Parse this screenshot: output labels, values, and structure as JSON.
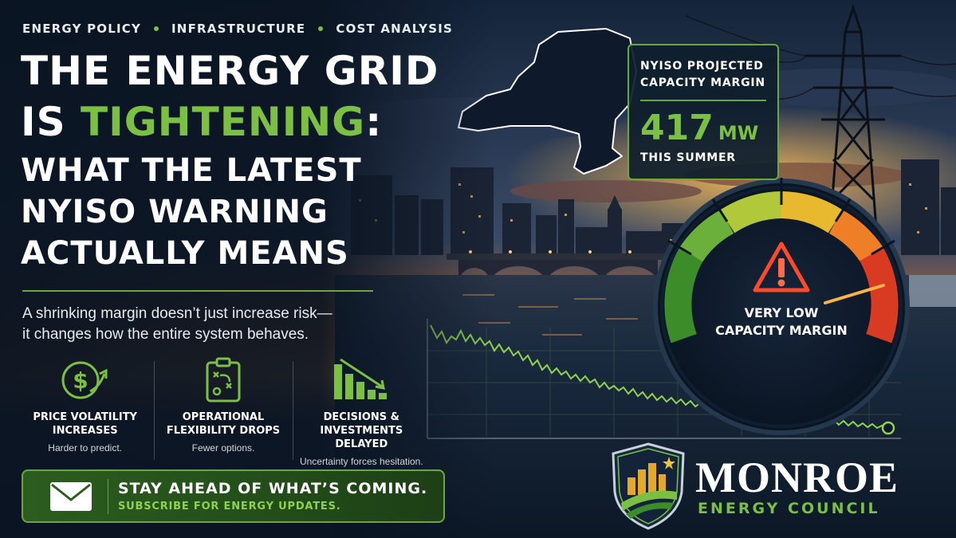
{
  "tags": [
    "ENERGY POLICY",
    "INFRASTRUCTURE",
    "COST ANALYSIS"
  ],
  "headline": {
    "line1": "THE ENERGY GRID",
    "line2_prefix": "IS ",
    "line2_accent": "TIGHTENING",
    "line2_suffix": ":",
    "line3": "WHAT THE LATEST",
    "line4": "NYISO WARNING",
    "line5": "ACTUALLY MEANS"
  },
  "subheadline": {
    "line1": "A shrinking margin doesn’t just increase risk—",
    "line2": "it changes how the entire system behaves."
  },
  "features": [
    {
      "icon": "dollar-trend-icon",
      "title1": "PRICE VOLATILITY",
      "title2": "INCREASES",
      "desc": "Harder to predict."
    },
    {
      "icon": "strategy-clipboard-icon",
      "title1": "OPERATIONAL",
      "title2": "FLEXIBILITY DROPS",
      "desc": "Fewer options."
    },
    {
      "icon": "declining-bars-icon",
      "title1": "DECISIONS & INVESTMENTS",
      "title2": "DELAYED",
      "desc": "Uncertainty forces hesitation."
    }
  ],
  "cta": {
    "icon": "envelope-icon",
    "title": "STAY AHEAD OF WHAT’S COMING.",
    "subtitle": "SUBSCRIBE FOR ENERGY UPDATES."
  },
  "stat_card": {
    "label1": "NYISO PROJECTED",
    "label2": "CAPACITY MARGIN",
    "value": "417",
    "unit": "MW",
    "period": "THIS SUMMER"
  },
  "gauge": {
    "icon": "warning-triangle-icon",
    "label1": "VERY LOW",
    "label2": "CAPACITY MARGIN",
    "level": 0.88
  },
  "logo": {
    "name": "MONROE",
    "tagline": "ENERGY COUNCIL"
  },
  "colors": {
    "accent_green": "#7bc043",
    "navy": "#0b1626",
    "sunset_orange": "#f28a2e",
    "gauge_red": "#d83a22"
  }
}
